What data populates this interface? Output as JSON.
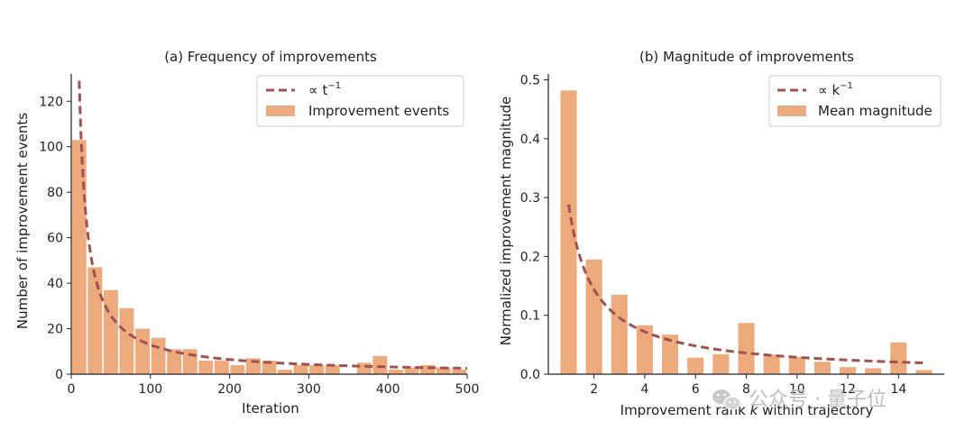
{
  "chart_data": [
    {
      "type": "bar",
      "title": "(a) Frequency of improvements",
      "xlabel": "Iteration",
      "ylabel": "Number of improvement events",
      "xlim": [
        0,
        500
      ],
      "ylim": [
        0,
        132
      ],
      "xticks": [
        0,
        100,
        200,
        300,
        400,
        500
      ],
      "yticks": [
        0,
        20,
        40,
        60,
        80,
        100,
        120
      ],
      "bar_width": 20,
      "bars": {
        "name": "Improvement events",
        "color": "#EDAA7D",
        "x": [
          10,
          30,
          50,
          70,
          90,
          110,
          130,
          150,
          170,
          190,
          210,
          230,
          250,
          270,
          290,
          310,
          330,
          350,
          370,
          390,
          410,
          430,
          450,
          470,
          490
        ],
        "values": [
          103,
          47,
          37,
          29,
          20,
          16,
          11,
          11,
          6,
          6,
          4,
          7,
          6,
          2,
          4,
          4,
          4,
          0,
          5,
          8,
          2,
          3,
          4,
          3,
          2
        ]
      },
      "fit": {
        "name": "∝ t",
        "name_sup": "−1",
        "color": "#A0524F",
        "coef": 1290,
        "x_start": 10,
        "x_end": 500
      },
      "legend": "top-right",
      "grid": false
    },
    {
      "type": "bar",
      "title": "(b) Magnitude of improvements",
      "xlabel_parts": [
        "Improvement rank ",
        "k",
        " within trajectory"
      ],
      "ylabel": "Normalized improvement magnitude",
      "xlim": [
        0.2,
        15.8
      ],
      "ylim": [
        0,
        0.51
      ],
      "xticks": [
        2,
        4,
        6,
        8,
        10,
        12,
        14
      ],
      "yticks": [
        0.0,
        0.1,
        0.2,
        0.3,
        0.4,
        0.5
      ],
      "ytick_labels": [
        "0.0",
        "0.1",
        "0.2",
        "0.3",
        "0.4",
        "0.5"
      ],
      "bar_width": 0.7,
      "bars": {
        "name": "Mean magnitude",
        "color": "#EDAA7D",
        "x": [
          1,
          2,
          3,
          4,
          5,
          6,
          7,
          8,
          9,
          10,
          11,
          12,
          13,
          14,
          15
        ],
        "values": [
          0.482,
          0.195,
          0.135,
          0.083,
          0.067,
          0.028,
          0.034,
          0.087,
          0.033,
          0.029,
          0.021,
          0.012,
          0.01,
          0.054,
          0.007
        ]
      },
      "fit": {
        "name": "∝ k",
        "name_sup": "−1",
        "color": "#A0524F",
        "coef": 0.288,
        "x_start": 1,
        "x_end": 15
      },
      "legend": "top-right",
      "grid": false
    }
  ],
  "watermark": {
    "icon": "wechat-icon",
    "text": "公众号 · 量子位"
  }
}
